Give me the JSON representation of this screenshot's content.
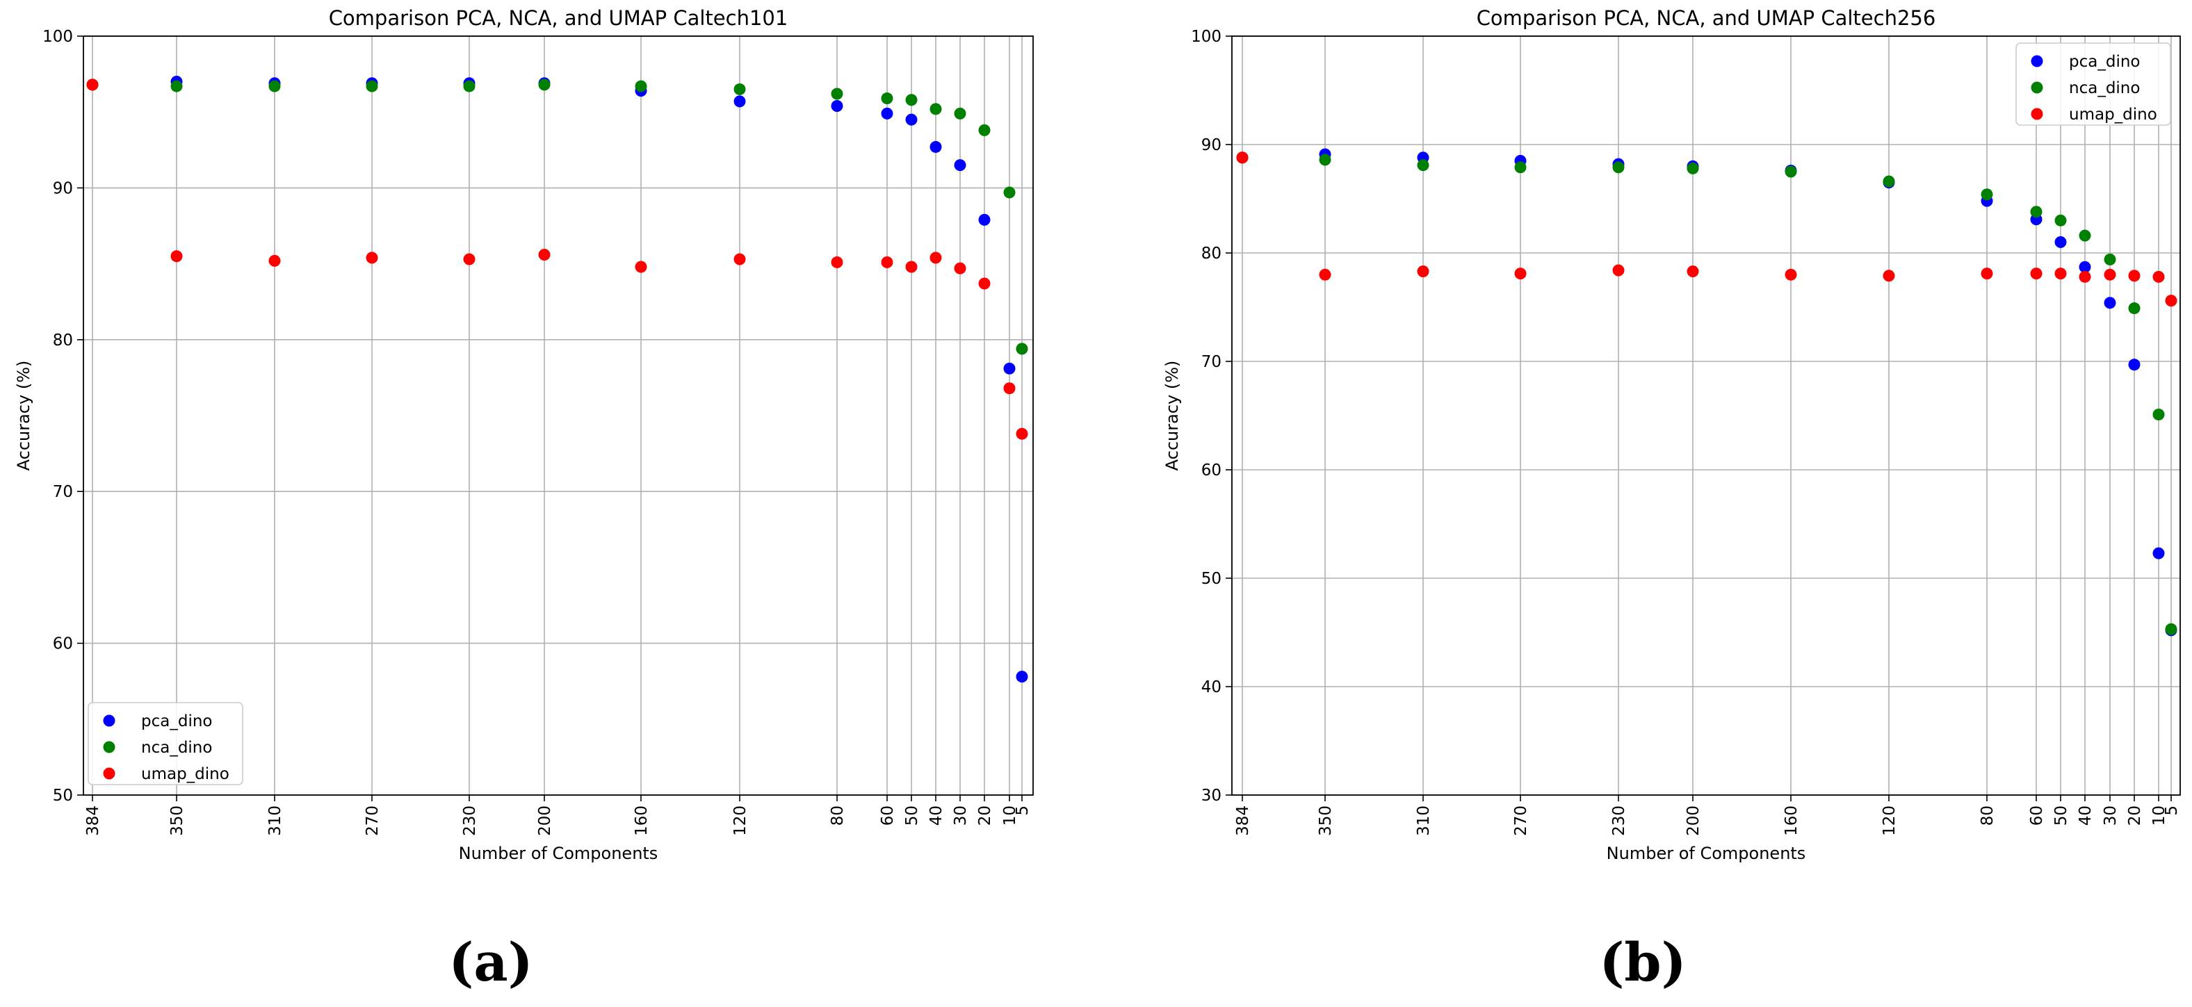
{
  "captions": [
    "(a)",
    "(b)"
  ],
  "chart_data": [
    {
      "type": "scatter",
      "title": "Comparison PCA, NCA, and UMAP Caltech101",
      "xlabel": "Number of Components",
      "ylabel": "Accuracy (%)",
      "ylim": [
        50,
        100
      ],
      "yticks": [
        "50",
        "60",
        "70",
        "80",
        "90",
        "100"
      ],
      "x_inverted": true,
      "x_ticks": [
        "384",
        "350",
        "310",
        "270",
        "230",
        "200",
        "160",
        "120",
        "80",
        "60",
        "50",
        "40",
        "30",
        "20",
        "10",
        "5"
      ],
      "grid": true,
      "legend": "lower-left",
      "series": [
        {
          "name": "pca_dino",
          "color": "#0000ff",
          "x": [
            384,
            350,
            310,
            270,
            230,
            200,
            160,
            120,
            80,
            60,
            50,
            40,
            30,
            20,
            10,
            5
          ],
          "y": [
            96.8,
            97.0,
            96.9,
            96.9,
            96.9,
            96.9,
            96.4,
            95.7,
            95.4,
            94.9,
            94.5,
            92.7,
            91.5,
            87.9,
            78.1,
            57.8
          ]
        },
        {
          "name": "nca_dino",
          "color": "#008000",
          "x": [
            384,
            350,
            310,
            270,
            230,
            200,
            160,
            120,
            80,
            60,
            50,
            40,
            30,
            20,
            10,
            5
          ],
          "y": [
            96.8,
            96.7,
            96.7,
            96.7,
            96.7,
            96.8,
            96.7,
            96.5,
            96.2,
            95.9,
            95.8,
            95.2,
            94.9,
            93.8,
            89.7,
            79.4
          ]
        },
        {
          "name": "umap_dino",
          "color": "#ff0000",
          "x": [
            384,
            350,
            310,
            270,
            230,
            200,
            160,
            120,
            80,
            60,
            50,
            40,
            30,
            20,
            10,
            5
          ],
          "y": [
            96.8,
            85.5,
            85.2,
            85.4,
            85.3,
            85.6,
            84.8,
            85.3,
            85.1,
            85.1,
            84.8,
            85.4,
            84.7,
            83.7,
            76.8,
            73.8
          ]
        }
      ]
    },
    {
      "type": "scatter",
      "title": "Comparison PCA, NCA, and UMAP Caltech256",
      "xlabel": "Number of Components",
      "ylabel": "Accuracy (%)",
      "ylim": [
        30,
        100
      ],
      "yticks": [
        "30",
        "40",
        "50",
        "60",
        "70",
        "80",
        "90",
        "100"
      ],
      "x_inverted": true,
      "x_ticks": [
        "384",
        "350",
        "310",
        "270",
        "230",
        "200",
        "160",
        "120",
        "80",
        "60",
        "50",
        "40",
        "30",
        "20",
        "10",
        "5"
      ],
      "grid": true,
      "legend": "upper-right",
      "series": [
        {
          "name": "pca_dino",
          "color": "#0000ff",
          "x": [
            384,
            350,
            310,
            270,
            230,
            200,
            160,
            120,
            80,
            60,
            50,
            40,
            30,
            20,
            10,
            5
          ],
          "y": [
            88.8,
            89.1,
            88.8,
            88.5,
            88.2,
            88.0,
            87.6,
            86.5,
            84.8,
            83.1,
            81.0,
            78.7,
            75.4,
            69.7,
            52.3,
            45.2
          ]
        },
        {
          "name": "nca_dino",
          "color": "#008000",
          "x": [
            384,
            350,
            310,
            270,
            230,
            200,
            160,
            120,
            80,
            60,
            50,
            40,
            30,
            20,
            10,
            5
          ],
          "y": [
            88.8,
            88.6,
            88.1,
            87.9,
            87.9,
            87.8,
            87.5,
            86.6,
            85.4,
            83.8,
            83.0,
            81.6,
            79.4,
            74.9,
            65.1,
            45.3
          ]
        },
        {
          "name": "umap_dino",
          "color": "#ff0000",
          "x": [
            384,
            350,
            310,
            270,
            230,
            200,
            160,
            120,
            80,
            60,
            50,
            40,
            30,
            20,
            10,
            5
          ],
          "y": [
            88.8,
            78.0,
            78.3,
            78.1,
            78.4,
            78.3,
            78.0,
            77.9,
            78.1,
            78.1,
            78.1,
            77.8,
            78.0,
            77.9,
            77.8,
            75.6
          ]
        }
      ]
    }
  ]
}
